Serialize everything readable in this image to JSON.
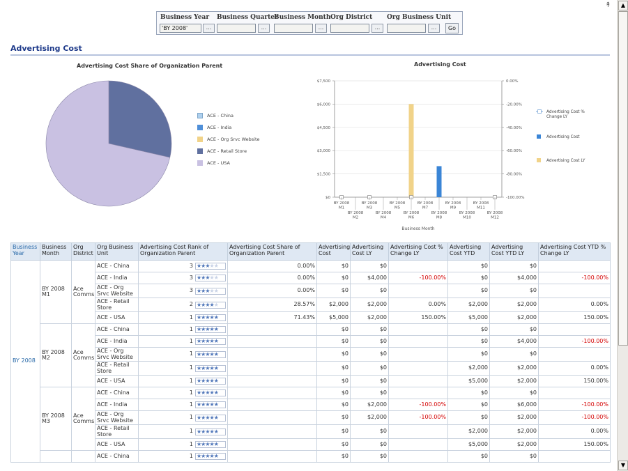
{
  "prompts": {
    "fields": [
      {
        "label": "Business Year",
        "value": "'BY 2008'"
      },
      {
        "label": "Business Quarter",
        "value": ""
      },
      {
        "label": "Business Month",
        "value": ""
      },
      {
        "label": "Org District",
        "value": ""
      },
      {
        "label": "Org Business Unit",
        "value": ""
      }
    ],
    "browse_label": "...",
    "go_label": "Go"
  },
  "section": {
    "title": "Advertising Cost"
  },
  "pie_chart": {
    "title": "Advertising Cost Share of Organization Parent",
    "legend": [
      {
        "label": "ACE - China",
        "color": "#aed0ee"
      },
      {
        "label": "ACE - India",
        "color": "#4f8fd8"
      },
      {
        "label": "ACE - Org Srvc Website",
        "color": "#f1d389"
      },
      {
        "label": "ACE - Retail Store",
        "color": "#60709f"
      },
      {
        "label": "ACE - USA",
        "color": "#c9c1e2"
      }
    ]
  },
  "chart_data": [
    {
      "type": "pie",
      "title": "Advertising Cost Share of Organization Parent",
      "categories": [
        "ACE - China",
        "ACE - India",
        "ACE - Org Srvc Website",
        "ACE - Retail Store",
        "ACE - USA"
      ],
      "values": [
        0.0,
        0.0,
        0.0,
        28.57,
        71.43
      ],
      "colors": [
        "#aed0ee",
        "#4f8fd8",
        "#f1d389",
        "#60709f",
        "#c9c1e2"
      ],
      "legend": "right"
    },
    {
      "type": "bar",
      "title": "Advertising Cost",
      "xlabel": "Business Month",
      "categories": [
        "BY 2008 M1",
        "BY 2008 M2",
        "BY 2008 M3",
        "BY 2008 M4",
        "BY 2008 M5",
        "BY 2008 M6",
        "BY 2008 M7",
        "BY 2008 M8",
        "BY 2008 M9",
        "BY 2008 M10",
        "BY 2008 M11",
        "BY 2008 M12"
      ],
      "category_lines": [
        [
          "BY 2008",
          "M1"
        ],
        [
          "BY 2008",
          "M2"
        ],
        [
          "BY 2008",
          "M3"
        ],
        [
          "BY 2008",
          "M4"
        ],
        [
          "BY 2008",
          "M5"
        ],
        [
          "BY 2008",
          "M6"
        ],
        [
          "BY 2008",
          "M7"
        ],
        [
          "BY 2008",
          "M8"
        ],
        [
          "BY 2008",
          "M9"
        ],
        [
          "BY 2008",
          "M10"
        ],
        [
          "BY 2008",
          "M11"
        ],
        [
          "BY 2008",
          "M12"
        ]
      ],
      "series": [
        {
          "name": "Advertising Cost % Change LY",
          "type": "line",
          "axis": "right",
          "color": "#7fa9d9",
          "values": [
            -100,
            null,
            -100,
            null,
            null,
            -100,
            null,
            null,
            null,
            null,
            null,
            -100
          ]
        },
        {
          "name": "Advertising Cost",
          "type": "bar",
          "axis": "left",
          "color": "#3a85d6",
          "values": [
            0,
            0,
            0,
            0,
            0,
            0,
            0,
            2000,
            0,
            0,
            0,
            0
          ]
        },
        {
          "name": "Advertising Cost LY",
          "type": "bar",
          "axis": "left",
          "color": "#f1d389",
          "values": [
            0,
            0,
            0,
            0,
            0,
            6000,
            0,
            0,
            0,
            0,
            0,
            0
          ]
        }
      ],
      "ylim": [
        0,
        7500
      ],
      "yticks": [
        "$0",
        "$1,500",
        "$3,000",
        "$4,500",
        "$6,000",
        "$7,500"
      ],
      "ylim_right": [
        -100,
        0
      ],
      "yticks_right": [
        "-100.00%",
        "-80.00%",
        "-60.00%",
        "-40.00%",
        "-20.00%",
        "0.00%"
      ],
      "grid": true,
      "legend": "right"
    }
  ],
  "table": {
    "headers": [
      "Business Year",
      "Business Month",
      "Org District",
      "Org Business Unit",
      "Advertising Cost Rank of Organization Parent",
      "Advertising Cost Share of Organization Parent",
      "Advertising Cost",
      "Advertising Cost LY",
      "Advertising Cost % Change LY",
      "Advertising Cost YTD",
      "Advertising Cost YTD LY",
      "Advertising Cost YTD % Change LY"
    ],
    "year": "BY 2008",
    "groups": [
      {
        "month": "BY 2008 M1",
        "district": "Ace Comms",
        "rows": [
          {
            "unit": "ACE - China",
            "rank": "3",
            "stars": 3,
            "share": "0.00%",
            "cost": "$0",
            "cost_ly": "$0",
            "pct": "",
            "ytd": "$0",
            "ytd_ly": "$0",
            "ytd_pct": ""
          },
          {
            "unit": "ACE - India",
            "rank": "3",
            "stars": 3,
            "share": "0.00%",
            "cost": "$0",
            "cost_ly": "$4,000",
            "pct": "-100.00%",
            "ytd": "$0",
            "ytd_ly": "$4,000",
            "ytd_pct": "-100.00%"
          },
          {
            "unit": "ACE - Org Srvc Website",
            "rank": "3",
            "stars": 3,
            "share": "0.00%",
            "cost": "$0",
            "cost_ly": "$0",
            "pct": "",
            "ytd": "$0",
            "ytd_ly": "$0",
            "ytd_pct": ""
          },
          {
            "unit": "ACE - Retail Store",
            "rank": "2",
            "stars": 4,
            "share": "28.57%",
            "cost": "$2,000",
            "cost_ly": "$2,000",
            "pct": "0.00%",
            "ytd": "$2,000",
            "ytd_ly": "$2,000",
            "ytd_pct": "0.00%"
          },
          {
            "unit": "ACE - USA",
            "rank": "1",
            "stars": 5,
            "share": "71.43%",
            "cost": "$5,000",
            "cost_ly": "$2,000",
            "pct": "150.00%",
            "ytd": "$5,000",
            "ytd_ly": "$2,000",
            "ytd_pct": "150.00%"
          }
        ]
      },
      {
        "month": "BY 2008 M2",
        "district": "Ace Comms",
        "rows": [
          {
            "unit": "ACE - China",
            "rank": "1",
            "stars": 5,
            "share": "",
            "cost": "$0",
            "cost_ly": "$0",
            "pct": "",
            "ytd": "$0",
            "ytd_ly": "$0",
            "ytd_pct": ""
          },
          {
            "unit": "ACE - India",
            "rank": "1",
            "stars": 5,
            "share": "",
            "cost": "$0",
            "cost_ly": "$0",
            "pct": "",
            "ytd": "$0",
            "ytd_ly": "$4,000",
            "ytd_pct": "-100.00%"
          },
          {
            "unit": "ACE - Org Srvc Website",
            "rank": "1",
            "stars": 5,
            "share": "",
            "cost": "$0",
            "cost_ly": "$0",
            "pct": "",
            "ytd": "$0",
            "ytd_ly": "$0",
            "ytd_pct": ""
          },
          {
            "unit": "ACE - Retail Store",
            "rank": "1",
            "stars": 5,
            "share": "",
            "cost": "$0",
            "cost_ly": "$0",
            "pct": "",
            "ytd": "$2,000",
            "ytd_ly": "$2,000",
            "ytd_pct": "0.00%"
          },
          {
            "unit": "ACE - USA",
            "rank": "1",
            "stars": 5,
            "share": "",
            "cost": "$0",
            "cost_ly": "$0",
            "pct": "",
            "ytd": "$5,000",
            "ytd_ly": "$2,000",
            "ytd_pct": "150.00%"
          }
        ]
      },
      {
        "month": "BY 2008 M3",
        "district": "Ace Comms",
        "rows": [
          {
            "unit": "ACE - China",
            "rank": "1",
            "stars": 5,
            "share": "",
            "cost": "$0",
            "cost_ly": "$0",
            "pct": "",
            "ytd": "$0",
            "ytd_ly": "$0",
            "ytd_pct": ""
          },
          {
            "unit": "ACE - India",
            "rank": "1",
            "stars": 5,
            "share": "",
            "cost": "$0",
            "cost_ly": "$2,000",
            "pct": "-100.00%",
            "ytd": "$0",
            "ytd_ly": "$6,000",
            "ytd_pct": "-100.00%"
          },
          {
            "unit": "ACE - Org Srvc Website",
            "rank": "1",
            "stars": 5,
            "share": "",
            "cost": "$0",
            "cost_ly": "$2,000",
            "pct": "-100.00%",
            "ytd": "$0",
            "ytd_ly": "$2,000",
            "ytd_pct": "-100.00%"
          },
          {
            "unit": "ACE - Retail Store",
            "rank": "1",
            "stars": 5,
            "share": "",
            "cost": "$0",
            "cost_ly": "$0",
            "pct": "",
            "ytd": "$2,000",
            "ytd_ly": "$2,000",
            "ytd_pct": "0.00%"
          },
          {
            "unit": "ACE - USA",
            "rank": "1",
            "stars": 5,
            "share": "",
            "cost": "$0",
            "cost_ly": "$0",
            "pct": "",
            "ytd": "$5,000",
            "ytd_ly": "$2,000",
            "ytd_pct": "150.00%"
          }
        ]
      },
      {
        "month": "",
        "district": "",
        "rows": [
          {
            "unit": "ACE - China",
            "rank": "1",
            "stars": 5,
            "share": "",
            "cost": "$0",
            "cost_ly": "$0",
            "pct": "",
            "ytd": "$0",
            "ytd_ly": "$0",
            "ytd_pct": ""
          }
        ]
      }
    ]
  }
}
